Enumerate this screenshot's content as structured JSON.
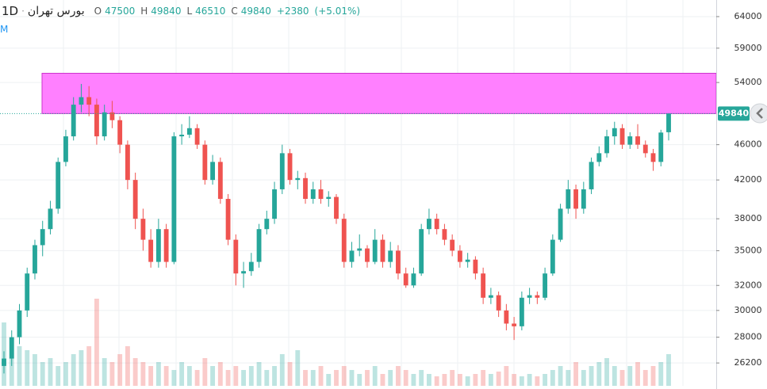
{
  "chart_data": {
    "type": "candlestick",
    "interval": "1D",
    "symbol": "بورس تهران",
    "side_label": "M",
    "ohlc_labels": [
      "O",
      "H",
      "L",
      "C"
    ],
    "ohlc_values": [
      47500,
      49840,
      46510,
      49840
    ],
    "change": "+2380",
    "change_pct": "(+5.01%)",
    "up_color": "#26a69a",
    "down_color": "#ef5350",
    "log_scale": true,
    "grid": true,
    "ylim": [
      24700,
      66800
    ],
    "yticks": [
      {
        "value": 64000,
        "label": "64000"
      },
      {
        "value": 59000,
        "label": "59000"
      },
      {
        "value": 54000,
        "label": "54000"
      },
      {
        "value": 46000,
        "label": "46000"
      },
      {
        "value": 42000,
        "label": "42000"
      },
      {
        "value": 38000,
        "label": "38000"
      },
      {
        "value": 35000,
        "label": "35000"
      },
      {
        "value": 32000,
        "label": "32000"
      },
      {
        "value": 30000,
        "label": "30000"
      },
      {
        "value": 28000,
        "label": "28000"
      },
      {
        "value": 26200,
        "label": "26200"
      }
    ],
    "zone": [
      49840,
      55300
    ],
    "zone_color": "#ff80ff",
    "volume_lim": [
      0,
      150000
    ],
    "ohlc": [
      [
        26000,
        27000,
        25500,
        26500
      ],
      [
        26500,
        28500,
        26000,
        28000
      ],
      [
        28000,
        30500,
        27500,
        30000
      ],
      [
        30000,
        33500,
        29500,
        33000
      ],
      [
        33000,
        36000,
        32500,
        35500
      ],
      [
        35500,
        37800,
        34500,
        37000
      ],
      [
        37000,
        39800,
        36500,
        39000
      ],
      [
        39000,
        44500,
        38500,
        44000
      ],
      [
        44000,
        47800,
        43500,
        47000
      ],
      [
        47000,
        52000,
        46500,
        51000
      ],
      [
        51000,
        53800,
        50000,
        52000
      ],
      [
        52000,
        53500,
        49500,
        51000
      ],
      [
        51000,
        51800,
        46000,
        47000
      ],
      [
        47000,
        51000,
        46500,
        50000
      ],
      [
        50000,
        51500,
        48000,
        49000
      ],
      [
        49000,
        49500,
        45000,
        46000
      ],
      [
        46000,
        46500,
        41000,
        42000
      ],
      [
        42000,
        42800,
        37000,
        38000
      ],
      [
        38000,
        39000,
        35000,
        36000
      ],
      [
        36000,
        37000,
        33500,
        34000
      ],
      [
        34000,
        38000,
        33500,
        37000
      ],
      [
        37000,
        37500,
        33500,
        34000
      ],
      [
        34000,
        47500,
        33800,
        47000
      ],
      [
        47000,
        48500,
        46000,
        47200
      ],
      [
        47200,
        49500,
        46800,
        48000
      ],
      [
        48000,
        48500,
        45500,
        46000
      ],
      [
        46000,
        46500,
        41500,
        42000
      ],
      [
        42000,
        44800,
        41500,
        44000
      ],
      [
        44000,
        44500,
        39500,
        40000
      ],
      [
        40000,
        40500,
        35500,
        36000
      ],
      [
        36000,
        36500,
        32000,
        33000
      ],
      [
        33000,
        34000,
        31800,
        33200
      ],
      [
        33200,
        34800,
        32800,
        34000
      ],
      [
        34000,
        37500,
        33500,
        37000
      ],
      [
        37000,
        38800,
        36500,
        38000
      ],
      [
        38000,
        41800,
        37500,
        41000
      ],
      [
        41000,
        46000,
        40500,
        45000
      ],
      [
        45000,
        45500,
        41500,
        42000
      ],
      [
        42000,
        43000,
        41000,
        42200
      ],
      [
        42200,
        42800,
        39500,
        40000
      ],
      [
        40000,
        41800,
        39500,
        41000
      ],
      [
        41000,
        42000,
        39500,
        40000
      ],
      [
        40000,
        40800,
        39200,
        40200
      ],
      [
        40200,
        40500,
        37500,
        38000
      ],
      [
        38000,
        38500,
        33500,
        34000
      ],
      [
        34000,
        35800,
        33500,
        35000
      ],
      [
        35000,
        36500,
        34500,
        35200
      ],
      [
        35200,
        35500,
        33500,
        34000
      ],
      [
        34000,
        37000,
        33800,
        36000
      ],
      [
        36000,
        36500,
        33500,
        34000
      ],
      [
        34000,
        35800,
        33500,
        35000
      ],
      [
        35000,
        35500,
        32500,
        33000
      ],
      [
        33000,
        33500,
        31800,
        32000
      ],
      [
        32000,
        33500,
        31800,
        33000
      ],
      [
        33000,
        37500,
        32800,
        37000
      ],
      [
        37000,
        39000,
        36500,
        38000
      ],
      [
        38000,
        38500,
        36500,
        37000
      ],
      [
        37000,
        37500,
        35500,
        36000
      ],
      [
        36000,
        36500,
        34500,
        35000
      ],
      [
        35000,
        35500,
        33500,
        34000
      ],
      [
        34000,
        34800,
        33500,
        34200
      ],
      [
        34200,
        34500,
        32500,
        33000
      ],
      [
        33000,
        33500,
        30500,
        31000
      ],
      [
        31000,
        31800,
        30500,
        31200
      ],
      [
        31200,
        31500,
        29500,
        30000
      ],
      [
        30000,
        30500,
        28500,
        29000
      ],
      [
        29000,
        29500,
        27800,
        28800
      ],
      [
        28800,
        31500,
        28500,
        31000
      ],
      [
        31000,
        31800,
        30500,
        31200
      ],
      [
        31200,
        31500,
        30500,
        31000
      ],
      [
        31000,
        33500,
        30800,
        33000
      ],
      [
        33000,
        36500,
        32800,
        36000
      ],
      [
        36000,
        39500,
        35800,
        39000
      ],
      [
        39000,
        42000,
        38500,
        41000
      ],
      [
        41000,
        41500,
        38000,
        39000
      ],
      [
        39000,
        41800,
        38500,
        41000
      ],
      [
        41000,
        44500,
        40500,
        44000
      ],
      [
        44000,
        45800,
        43500,
        45000
      ],
      [
        45000,
        47800,
        44500,
        47000
      ],
      [
        47000,
        48800,
        46000,
        48000
      ],
      [
        48000,
        48500,
        45500,
        46000
      ],
      [
        46000,
        47500,
        45500,
        47000
      ],
      [
        47000,
        48500,
        45500,
        46000
      ],
      [
        46000,
        46500,
        44500,
        45000
      ],
      [
        45000,
        45500,
        43000,
        44000
      ],
      [
        44000,
        47800,
        43500,
        47460
      ],
      [
        47500,
        49840,
        46510,
        49840
      ]
    ],
    "volume": [
      80000,
      60000,
      50000,
      45000,
      40000,
      30000,
      35000,
      25000,
      30000,
      40000,
      45000,
      50000,
      110000,
      35000,
      30000,
      40000,
      50000,
      35000,
      30000,
      25000,
      30000,
      25000,
      20000,
      30000,
      25000,
      20000,
      35000,
      25000,
      30000,
      20000,
      25000,
      20000,
      25000,
      30000,
      20000,
      25000,
      40000,
      30000,
      45000,
      20000,
      20000,
      25000,
      15000,
      20000,
      25000,
      20000,
      15000,
      20000,
      25000,
      15000,
      20000,
      25000,
      20000,
      15000,
      20000,
      15000,
      12000,
      15000,
      20000,
      15000,
      12000,
      15000,
      20000,
      15000,
      18000,
      25000,
      15000,
      12000,
      15000,
      12000,
      15000,
      20000,
      25000,
      20000,
      30000,
      20000,
      25000,
      30000,
      35000,
      25000,
      20000,
      25000,
      30000,
      20000,
      25000,
      30000,
      40000
    ]
  }
}
